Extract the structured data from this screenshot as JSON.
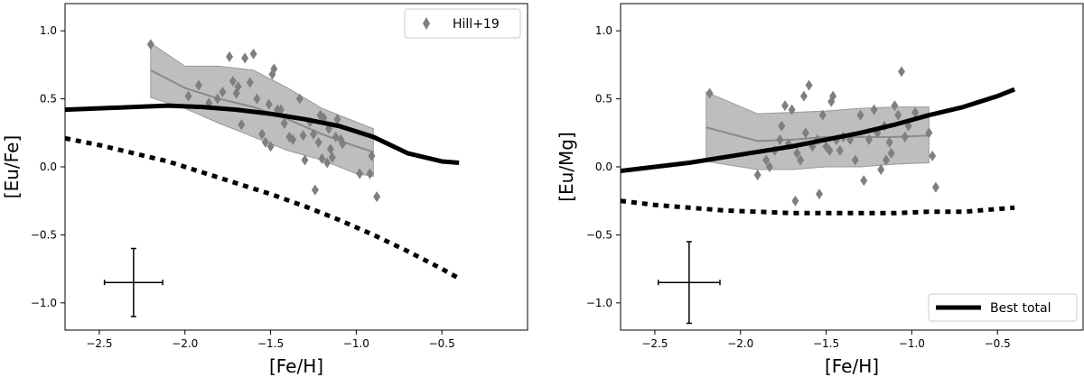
{
  "chart_data": [
    {
      "type": "scatter",
      "panel": "left",
      "xlabel": "[Fe/H]",
      "ylabel": "[Eu/Fe]",
      "xlim": [
        -2.7,
        0.0
      ],
      "ylim": [
        -1.2,
        1.2
      ],
      "xticks": [
        -2.5,
        -2.0,
        -1.5,
        -1.0,
        -0.5
      ],
      "xtick_labels": [
        "−2.5",
        "−2.0",
        "−1.5",
        "−1.0",
        "−0.5"
      ],
      "yticks": [
        -1.0,
        -0.5,
        0.0,
        0.5,
        1.0
      ],
      "ytick_labels": [
        "−1.0",
        "−0.5",
        "0.0",
        "0.5",
        "1.0"
      ],
      "legend": {
        "location": "top-right",
        "entries": [
          {
            "label": "Hill+19",
            "marker": "diamond",
            "color": "#7f7f7f"
          }
        ]
      },
      "scatter": {
        "name": "Hill+19",
        "color": "#7f7f7f",
        "points": [
          [
            -2.2,
            0.9
          ],
          [
            -1.98,
            0.52
          ],
          [
            -1.92,
            0.6
          ],
          [
            -1.86,
            0.47
          ],
          [
            -1.81,
            0.5
          ],
          [
            -1.78,
            0.55
          ],
          [
            -1.74,
            0.81
          ],
          [
            -1.72,
            0.63
          ],
          [
            -1.7,
            0.54
          ],
          [
            -1.69,
            0.59
          ],
          [
            -1.67,
            0.31
          ],
          [
            -1.65,
            0.8
          ],
          [
            -1.62,
            0.62
          ],
          [
            -1.6,
            0.83
          ],
          [
            -1.58,
            0.5
          ],
          [
            -1.55,
            0.24
          ],
          [
            -1.53,
            0.18
          ],
          [
            -1.51,
            0.46
          ],
          [
            -1.5,
            0.15
          ],
          [
            -1.49,
            0.68
          ],
          [
            -1.48,
            0.72
          ],
          [
            -1.46,
            0.42
          ],
          [
            -1.44,
            0.42
          ],
          [
            -1.42,
            0.32
          ],
          [
            -1.39,
            0.22
          ],
          [
            -1.37,
            0.2
          ],
          [
            -1.33,
            0.5
          ],
          [
            -1.31,
            0.23
          ],
          [
            -1.3,
            0.05
          ],
          [
            -1.27,
            0.33
          ],
          [
            -1.25,
            0.24
          ],
          [
            -1.24,
            -0.17
          ],
          [
            -1.22,
            0.18
          ],
          [
            -1.21,
            0.38
          ],
          [
            -1.2,
            0.06
          ],
          [
            -1.19,
            0.36
          ],
          [
            -1.17,
            0.03
          ],
          [
            -1.16,
            0.28
          ],
          [
            -1.15,
            0.13
          ],
          [
            -1.14,
            0.07
          ],
          [
            -1.12,
            0.22
          ],
          [
            -1.11,
            0.35
          ],
          [
            -1.09,
            0.2
          ],
          [
            -1.08,
            0.17
          ],
          [
            -0.98,
            -0.05
          ],
          [
            -0.92,
            -0.05
          ],
          [
            -0.91,
            0.08
          ],
          [
            -0.88,
            -0.22
          ]
        ]
      },
      "median_band": {
        "name": "median trend with spread",
        "color": "#8a8a8a",
        "fill": "#b3b3b3",
        "x": [
          -2.2,
          -2.0,
          -1.8,
          -1.6,
          -1.4,
          -1.2,
          -1.0,
          -0.9
        ],
        "median": [
          0.71,
          0.58,
          0.5,
          0.44,
          0.35,
          0.24,
          0.15,
          0.11
        ],
        "upper": [
          0.91,
          0.74,
          0.74,
          0.71,
          0.58,
          0.43,
          0.33,
          0.28
        ],
        "lower": [
          0.51,
          0.43,
          0.32,
          0.22,
          0.12,
          0.05,
          -0.05,
          -0.07
        ]
      },
      "series": [
        {
          "name": "Best total",
          "style": "solid",
          "color": "#000000",
          "x": [
            -2.7,
            -2.5,
            -2.3,
            -2.1,
            -1.9,
            -1.7,
            -1.5,
            -1.3,
            -1.1,
            -0.9,
            -0.7,
            -0.5,
            -0.4
          ],
          "y": [
            0.42,
            0.43,
            0.44,
            0.45,
            0.44,
            0.42,
            0.39,
            0.35,
            0.3,
            0.22,
            0.1,
            0.04,
            0.03
          ]
        },
        {
          "name": "dotted model",
          "style": "dotted",
          "color": "#000000",
          "x": [
            -2.7,
            -2.5,
            -2.3,
            -2.1,
            -1.9,
            -1.7,
            -1.5,
            -1.3,
            -1.1,
            -0.9,
            -0.7,
            -0.5,
            -0.4
          ],
          "y": [
            0.21,
            0.16,
            0.1,
            0.04,
            -0.04,
            -0.12,
            -0.2,
            -0.29,
            -0.39,
            -0.5,
            -0.62,
            -0.75,
            -0.82
          ]
        }
      ],
      "error_bar": {
        "x": -2.3,
        "y": -0.85,
        "xerr": 0.17,
        "yerr": 0.25
      }
    },
    {
      "type": "scatter",
      "panel": "right",
      "xlabel": "[Fe/H]",
      "ylabel": "[Eu/Mg]",
      "xlim": [
        -2.7,
        0.0
      ],
      "ylim": [
        -1.2,
        1.2
      ],
      "xticks": [
        -2.5,
        -2.0,
        -1.5,
        -1.0,
        -0.5
      ],
      "xtick_labels": [
        "−2.5",
        "−2.0",
        "−1.5",
        "−1.0",
        "−0.5"
      ],
      "yticks": [
        -1.0,
        -0.5,
        0.0,
        0.5,
        1.0
      ],
      "ytick_labels": [
        "−1.0",
        "−0.5",
        "0.0",
        "0.5",
        "1.0"
      ],
      "legend": {
        "location": "bottom-right",
        "entries": [
          {
            "label": "Best total",
            "marker": "line",
            "color": "#000000"
          }
        ]
      },
      "scatter": {
        "name": "Hill+19",
        "color": "#7f7f7f",
        "points": [
          [
            -2.18,
            0.54
          ],
          [
            -1.9,
            -0.06
          ],
          [
            -1.85,
            0.05
          ],
          [
            -1.83,
            0.0
          ],
          [
            -1.8,
            0.12
          ],
          [
            -1.77,
            0.2
          ],
          [
            -1.76,
            0.3
          ],
          [
            -1.74,
            0.45
          ],
          [
            -1.72,
            0.17
          ],
          [
            -1.7,
            0.42
          ],
          [
            -1.68,
            -0.25
          ],
          [
            -1.67,
            0.1
          ],
          [
            -1.65,
            0.05
          ],
          [
            -1.63,
            0.52
          ],
          [
            -1.62,
            0.25
          ],
          [
            -1.6,
            0.6
          ],
          [
            -1.58,
            0.15
          ],
          [
            -1.55,
            0.2
          ],
          [
            -1.54,
            -0.2
          ],
          [
            -1.52,
            0.38
          ],
          [
            -1.5,
            0.15
          ],
          [
            -1.48,
            0.12
          ],
          [
            -1.47,
            0.48
          ],
          [
            -1.46,
            0.52
          ],
          [
            -1.44,
            0.2
          ],
          [
            -1.42,
            0.12
          ],
          [
            -1.4,
            0.22
          ],
          [
            -1.36,
            0.2
          ],
          [
            -1.33,
            0.05
          ],
          [
            -1.3,
            0.38
          ],
          [
            -1.28,
            -0.1
          ],
          [
            -1.25,
            0.2
          ],
          [
            -1.22,
            0.42
          ],
          [
            -1.2,
            0.25
          ],
          [
            -1.18,
            -0.02
          ],
          [
            -1.16,
            0.3
          ],
          [
            -1.15,
            0.05
          ],
          [
            -1.13,
            0.18
          ],
          [
            -1.12,
            0.1
          ],
          [
            -1.1,
            0.45
          ],
          [
            -1.08,
            0.38
          ],
          [
            -1.06,
            0.7
          ],
          [
            -1.04,
            0.22
          ],
          [
            -1.02,
            0.3
          ],
          [
            -0.98,
            0.4
          ],
          [
            -0.9,
            0.25
          ],
          [
            -0.88,
            0.08
          ],
          [
            -0.86,
            -0.15
          ]
        ]
      },
      "median_band": {
        "name": "median trend with spread",
        "color": "#8a8a8a",
        "fill": "#b3b3b3",
        "x": [
          -2.2,
          -1.9,
          -1.7,
          -1.5,
          -1.3,
          -1.1,
          -0.9
        ],
        "median": [
          0.29,
          0.19,
          0.2,
          0.22,
          0.22,
          0.22,
          0.23
        ],
        "upper": [
          0.55,
          0.39,
          0.4,
          0.41,
          0.43,
          0.44,
          0.44
        ],
        "lower": [
          0.04,
          -0.02,
          -0.02,
          0.0,
          0.0,
          0.02,
          0.03
        ]
      },
      "series": [
        {
          "name": "Best total",
          "style": "solid",
          "color": "#000000",
          "x": [
            -2.7,
            -2.5,
            -2.3,
            -2.1,
            -1.9,
            -1.7,
            -1.5,
            -1.3,
            -1.1,
            -0.9,
            -0.7,
            -0.5,
            -0.4
          ],
          "y": [
            -0.03,
            0.0,
            0.03,
            0.07,
            0.11,
            0.15,
            0.2,
            0.25,
            0.31,
            0.38,
            0.44,
            0.52,
            0.57
          ]
        },
        {
          "name": "dotted model",
          "style": "dotted",
          "color": "#000000",
          "x": [
            -2.7,
            -2.5,
            -2.3,
            -2.1,
            -1.9,
            -1.7,
            -1.5,
            -1.3,
            -1.1,
            -0.9,
            -0.7,
            -0.5,
            -0.4
          ],
          "y": [
            -0.25,
            -0.28,
            -0.3,
            -0.32,
            -0.33,
            -0.34,
            -0.34,
            -0.34,
            -0.34,
            -0.33,
            -0.33,
            -0.31,
            -0.3
          ]
        }
      ],
      "error_bar": {
        "x": -2.3,
        "y": -0.85,
        "xerr": 0.18,
        "yerr": 0.3
      }
    }
  ]
}
